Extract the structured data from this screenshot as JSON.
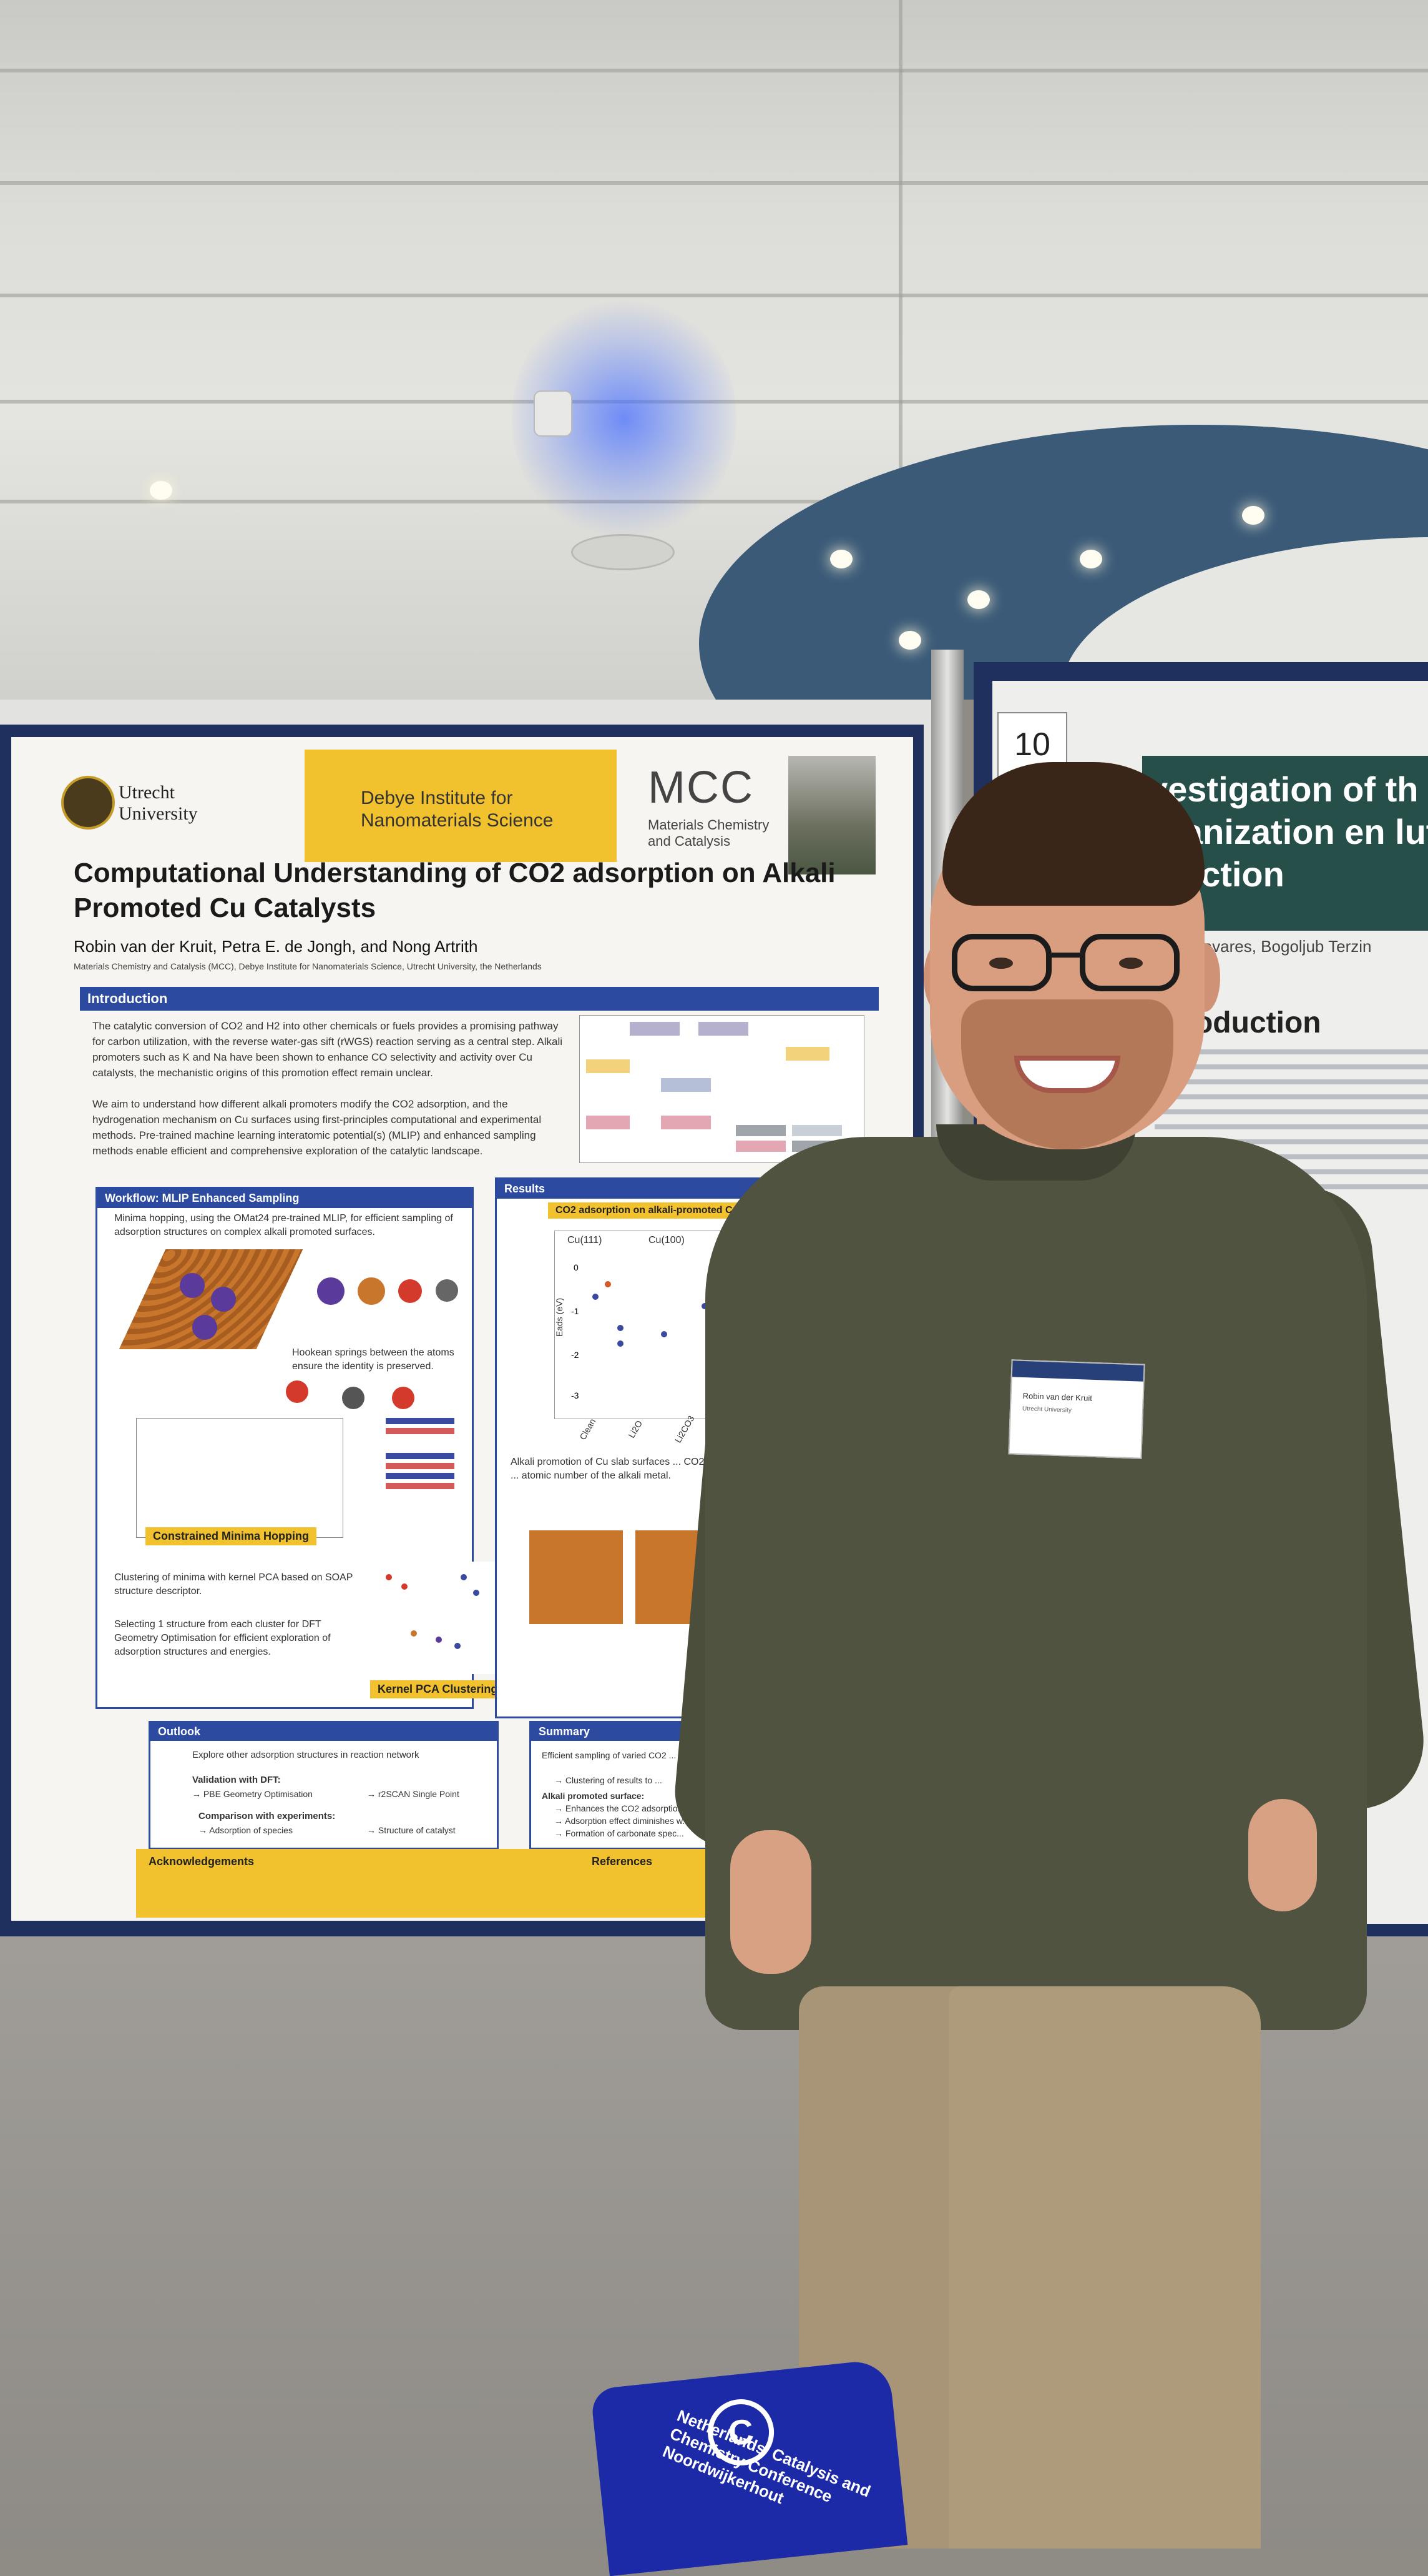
{
  "poster": {
    "university": "Utrecht University",
    "institute": "Debye Institute for Nanomaterials Science",
    "group_logo": "MCC",
    "group_name": "Materials Chemistry and Catalysis",
    "title": "Computational Understanding of CO2 adsorption on Alkali Promoted Cu Catalysts",
    "authors": "Robin van der Kruit, Petra E. de Jongh, and Nong Artrith",
    "affiliation": "Materials Chemistry and Catalysis (MCC), Debye Institute for Nanomaterials Science, Utrecht University, the Netherlands",
    "sections": {
      "introduction": "Introduction",
      "workflow": "Workflow: MLIP Enhanced Sampling",
      "results": "Results",
      "outlook": "Outlook",
      "summary": "Summary",
      "acknowledgements": "Acknowledgements",
      "references": "References"
    },
    "intro_text": "The catalytic conversion of CO2 and H2 into other chemicals or fuels provides a promising pathway for carbon utilization, with the reverse water-gas sift (rWGS) reaction serving as a central step. Alkali promoters such as K and Na have been shown to enhance CO selectivity and activity over Cu catalysts, the mechanistic origins of this promotion effect remain unclear.",
    "intro_text2": "We aim to understand how different alkali promoters modify the CO2 adsorption, and the hydrogenation mechanism on Cu surfaces using first-principles computational and experimental methods. Pre-trained machine learning interatomic potential(s) (MLIP) and enhanced sampling methods enable efficient and comprehensive exploration of the catalytic landscape.",
    "workflow_text": "Minima hopping, using the OMat24 pre-trained MLIP, for efficient sampling of adsorption structures on complex alkali promoted surfaces.",
    "hookean_text": "Hookean springs between the atoms ensure the identity is preserved.",
    "constrained_label": "Constrained Minima Hopping",
    "kernel_text": "Clustering of minima with kernel PCA based on SOAP structure descriptor.",
    "selecting_text": "Selecting 1 structure from each cluster for DFT Geometry Optimisation for efficient exploration of adsorption structures and energies.",
    "kernel_label": "Kernel PCA Clustering",
    "chart_title": "CO2 adsorption on alkali-promoted Cu",
    "legend_cu111": "Cu(111)",
    "legend_cu100": "Cu(100)",
    "y_axis_label": "Eads (eV)",
    "x_ticks": [
      "Clean",
      "Li2O",
      "Li2CO3"
    ],
    "y_ticks": [
      "0",
      "-1",
      "-2",
      "-3"
    ],
    "results_caption": "Alkali promotion of Cu slab surfaces ... CO2. The strength of the adsorption ... atomic number of the alkali metal.",
    "outlook_item1": "Explore other adsorption structures in reaction network",
    "outlook_item2": "Validation with DFT:",
    "outlook_item2a": "→ PBE Geometry Optimisation",
    "outlook_item2b": "→ r2SCAN Single Point",
    "outlook_item3": "Comparison with experiments:",
    "outlook_item3a": "→ Adsorption of species",
    "outlook_item3b": "→ Structure of catalyst",
    "summary_item1": "Efficient sampling of varied CO2 ... constrained minima hopping and ...",
    "summary_item1a": "→ Clustering of results to ...",
    "summary_item2": "Alkali promoted surface:",
    "summary_item2a": "→ Enhances the CO2 adsorption ...",
    "summary_item2b": "→ Adsorption effect diminishes w...",
    "summary_item2c": "→ Formation of carbonate spec..."
  },
  "poster2": {
    "board_number": "10",
    "title": "vestigation of th rganization en lution reaction",
    "authors": "e Pan Tavares, Bogoljub Terzin",
    "intro_heading": "ntroduction"
  },
  "badge": {
    "name": "Robin van der Kruit",
    "org": "Utrecht University"
  },
  "bag": {
    "text": "Netherlands' Catalysis and Chemistry Conference Noordwijkerhout",
    "logo": "C"
  }
}
